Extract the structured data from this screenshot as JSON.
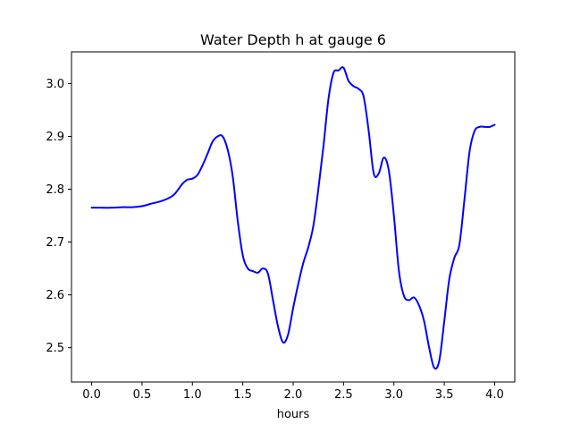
{
  "colors": {
    "line": "#0000ff",
    "axes": "#000000",
    "background": "#ffffff"
  },
  "chart_data": {
    "type": "line",
    "title": "Water Depth h at gauge 6",
    "xlabel": "hours",
    "ylabel": "",
    "xlim": [
      -0.2,
      4.2
    ],
    "ylim": [
      2.435,
      3.06
    ],
    "grid": false,
    "legend": "none",
    "xticks": [
      0.0,
      0.5,
      1.0,
      1.5,
      2.0,
      2.5,
      3.0,
      3.5,
      4.0
    ],
    "xtick_labels": [
      "0.0",
      "0.5",
      "1.0",
      "1.5",
      "2.0",
      "2.5",
      "3.0",
      "3.5",
      "4.0"
    ],
    "yticks": [
      2.5,
      2.6,
      2.7,
      2.8,
      2.9,
      3.0
    ],
    "ytick_labels": [
      "2.5",
      "2.6",
      "2.7",
      "2.8",
      "2.9",
      "3.0"
    ],
    "series": [
      {
        "color": "#0000ff",
        "x": [
          0.0,
          0.1,
          0.2,
          0.3,
          0.4,
          0.5,
          0.6,
          0.7,
          0.8,
          0.85,
          0.9,
          0.95,
          1.0,
          1.05,
          1.1,
          1.15,
          1.2,
          1.25,
          1.3,
          1.35,
          1.4,
          1.45,
          1.5,
          1.55,
          1.6,
          1.65,
          1.7,
          1.75,
          1.8,
          1.85,
          1.9,
          1.95,
          2.0,
          2.05,
          2.1,
          2.15,
          2.2,
          2.25,
          2.3,
          2.35,
          2.4,
          2.45,
          2.5,
          2.55,
          2.6,
          2.65,
          2.7,
          2.75,
          2.8,
          2.85,
          2.9,
          2.95,
          3.0,
          3.05,
          3.1,
          3.15,
          3.2,
          3.25,
          3.3,
          3.35,
          3.4,
          3.45,
          3.5,
          3.55,
          3.6,
          3.65,
          3.7,
          3.75,
          3.8,
          3.85,
          3.9,
          3.95,
          4.0
        ],
        "values": [
          2.765,
          2.765,
          2.765,
          2.766,
          2.766,
          2.768,
          2.773,
          2.778,
          2.787,
          2.797,
          2.81,
          2.818,
          2.82,
          2.827,
          2.845,
          2.867,
          2.89,
          2.9,
          2.9,
          2.875,
          2.825,
          2.74,
          2.675,
          2.65,
          2.645,
          2.642,
          2.65,
          2.64,
          2.59,
          2.54,
          2.51,
          2.525,
          2.575,
          2.62,
          2.66,
          2.69,
          2.73,
          2.8,
          2.88,
          2.97,
          3.02,
          3.025,
          3.03,
          3.005,
          2.995,
          2.99,
          2.975,
          2.91,
          2.83,
          2.83,
          2.86,
          2.835,
          2.75,
          2.645,
          2.598,
          2.59,
          2.595,
          2.58,
          2.55,
          2.5,
          2.462,
          2.475,
          2.55,
          2.63,
          2.67,
          2.695,
          2.78,
          2.87,
          2.91,
          2.918,
          2.918,
          2.918,
          2.922
        ]
      }
    ]
  }
}
